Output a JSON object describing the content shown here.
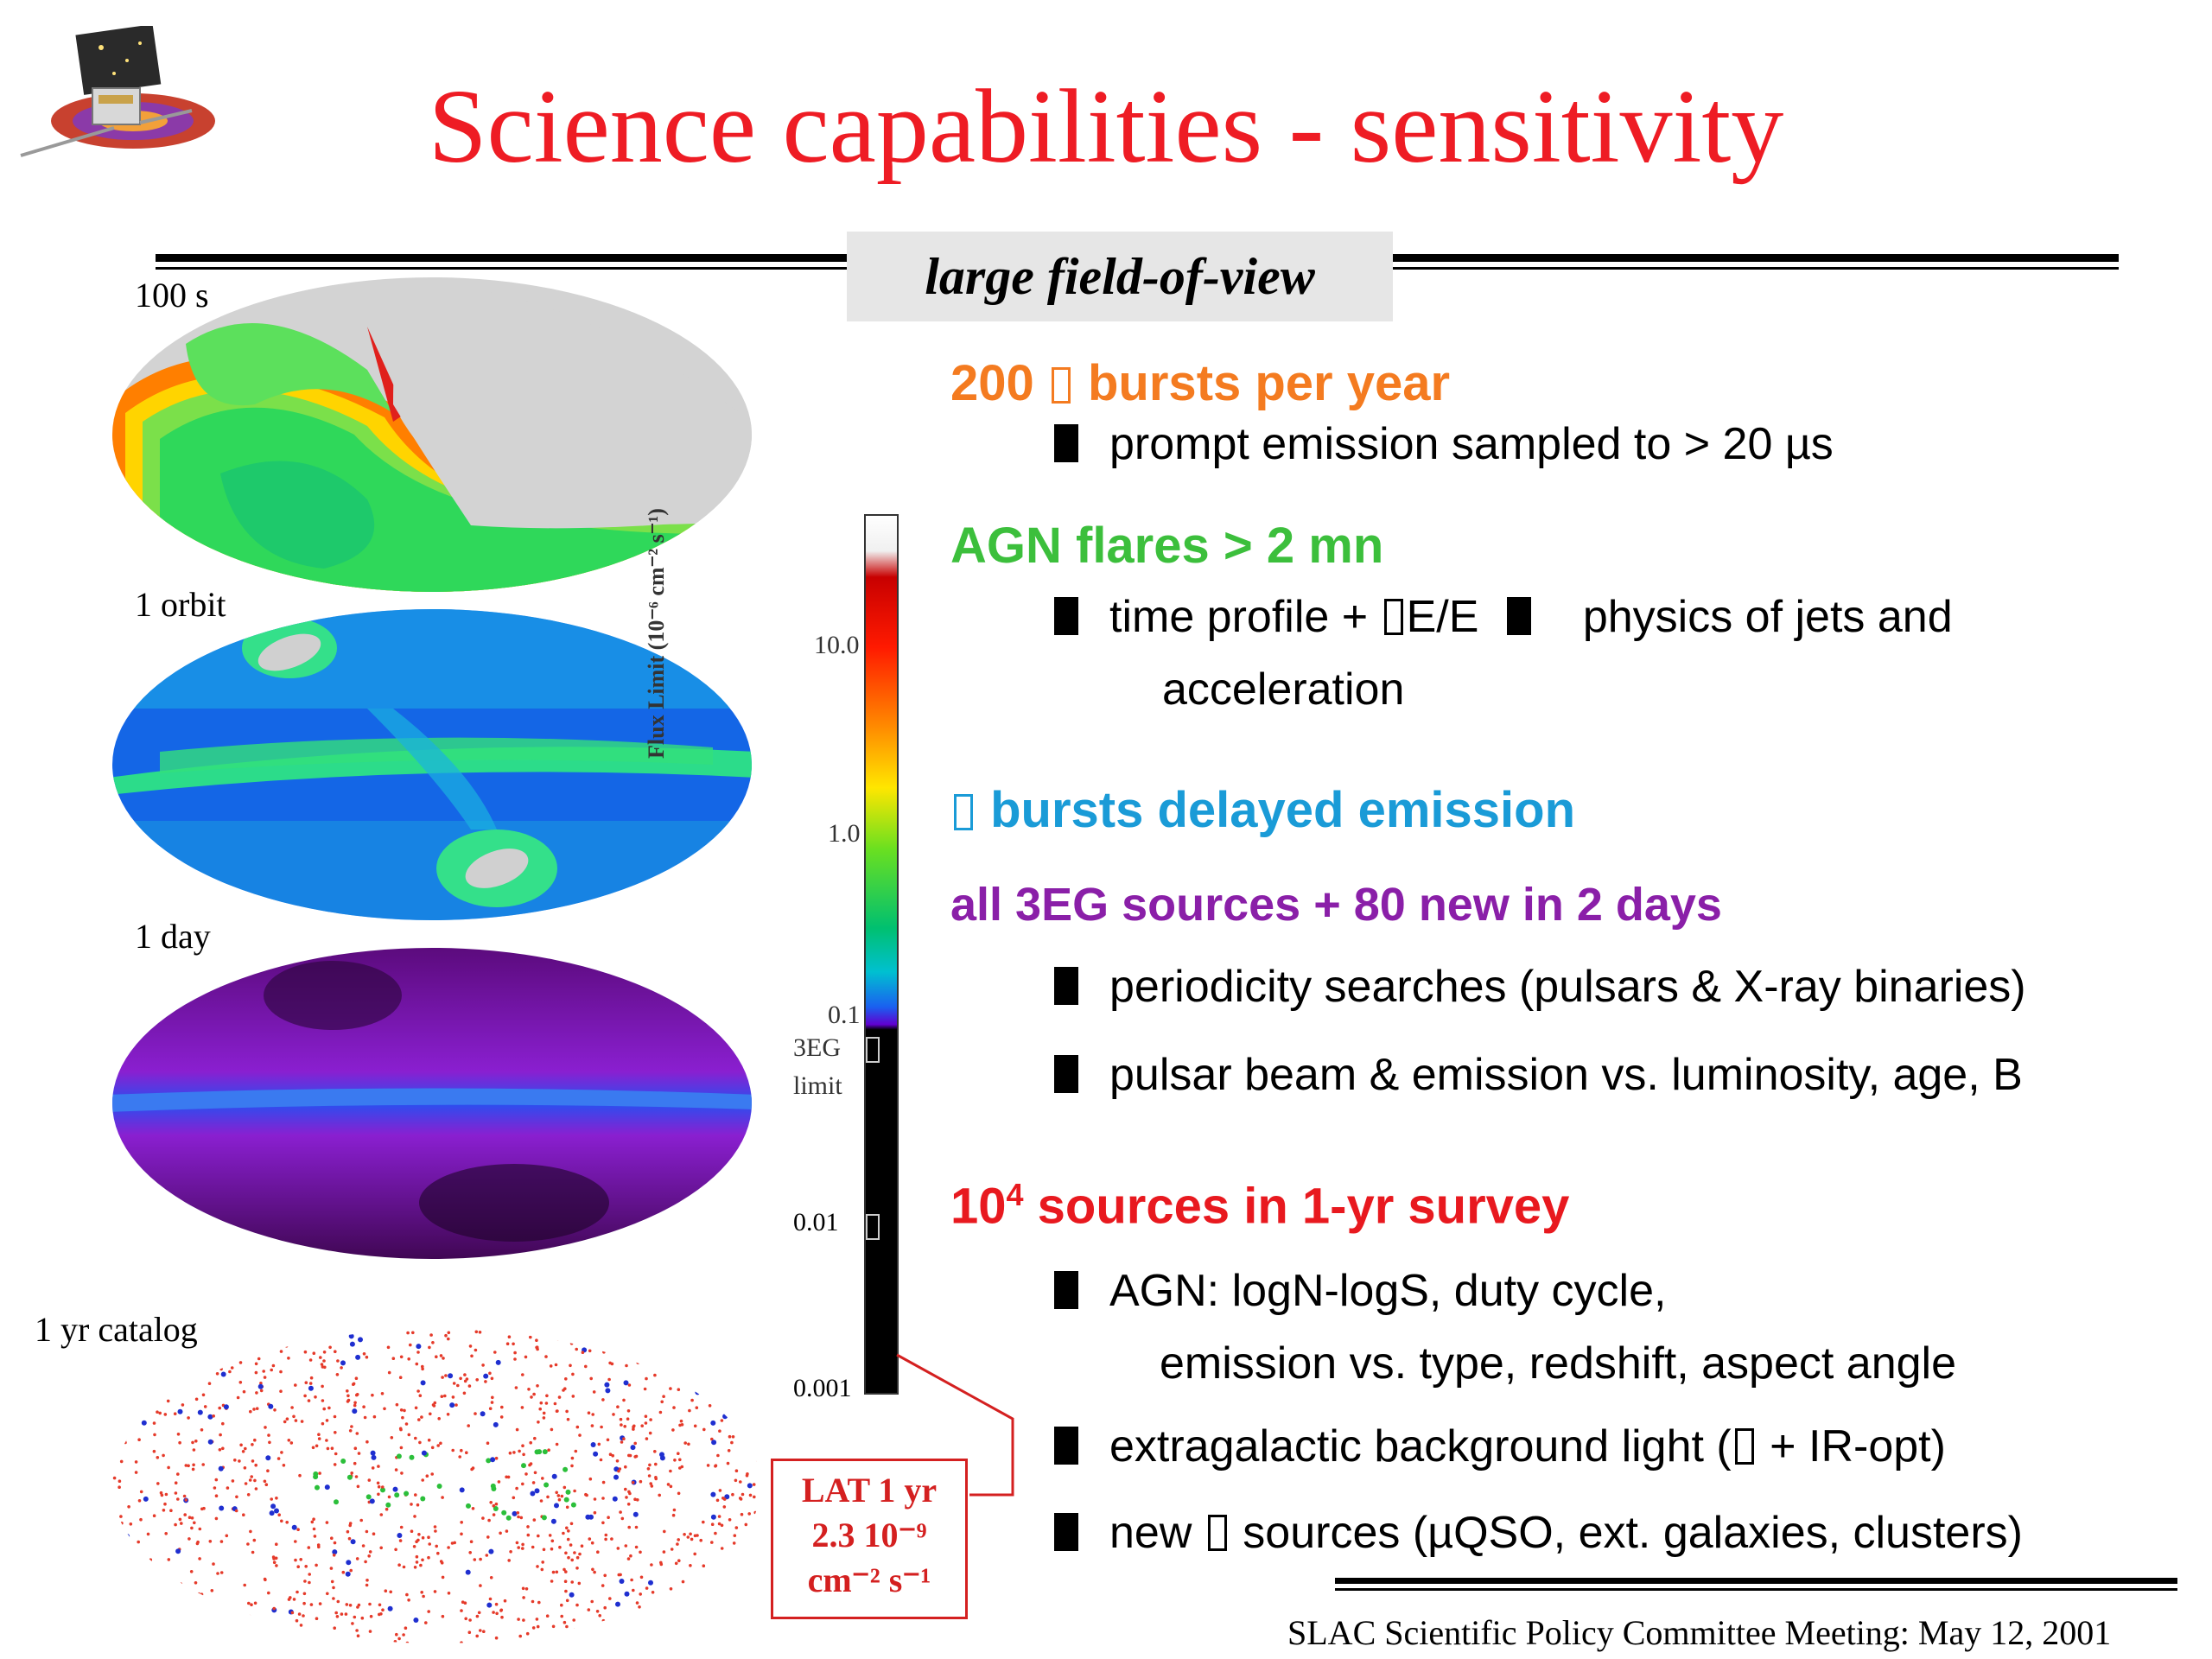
{
  "slide": {
    "title": "Science capabilities - sensitivity",
    "subtitle": "large field-of-view",
    "footer": "SLAC Scientific Policy Committee Meeting:  May 12, 2001"
  },
  "maps": {
    "m100s": "100 s",
    "orbit": "1 orbit",
    "day": "1 day",
    "catalog": "1 yr catalog"
  },
  "colorbar": {
    "axis_label": "Flux Limit (10⁻⁶ cm⁻² s⁻¹)",
    "ticks": [
      "10.0",
      "1.0",
      "0.1",
      "0.01",
      "0.001"
    ],
    "egret_line1": "3EG",
    "egret_line2": "limit"
  },
  "lat_box": {
    "line1": "LAT 1 yr",
    "line2": "2.3 10⁻⁹",
    "line3": "cm⁻² s⁻¹"
  },
  "sections": {
    "grb": {
      "head_pre": "200 ",
      "head_post": " bursts per year",
      "b1": "prompt emission sampled to > 20 µs"
    },
    "agn": {
      "head": "AGN flares > 2 mn",
      "b1_pre": "time profile + ",
      "b1_mid": "E/E ",
      "b1_post": "physics of jets and",
      "b1_cont": "acceleration"
    },
    "delayed": {
      "head": " bursts delayed emission"
    },
    "egret": {
      "head": "all 3EG sources + 80 new in 2 days",
      "b1": "periodicity searches (pulsars & X-ray binaries)",
      "b2": "pulsar beam & emission vs. luminosity, age, B"
    },
    "survey": {
      "head_pre": "10",
      "head_sup": "4",
      "head_post": " sources in 1-yr survey",
      "b1": "AGN: logN-logS, duty cycle,",
      "b1_cont": "emission vs. type, redshift, aspect angle",
      "b2_pre": "extragalactic background light (",
      "b2_post": " + IR-opt)",
      "b3_pre": "new ",
      "b3_post": " sources (µQSO, ext. galaxies, clusters)"
    }
  },
  "colors": {
    "title": "#ee1c24",
    "grb": "#f47b20",
    "agn": "#3cbf3c",
    "delayed": "#1a9bd7",
    "egret": "#8a1fa8",
    "survey": "#e8191f"
  },
  "icons": [
    "satellite-logo",
    "sky-map-100s",
    "sky-map-orbit",
    "sky-map-day",
    "sky-map-catalog",
    "flux-colorbar"
  ]
}
